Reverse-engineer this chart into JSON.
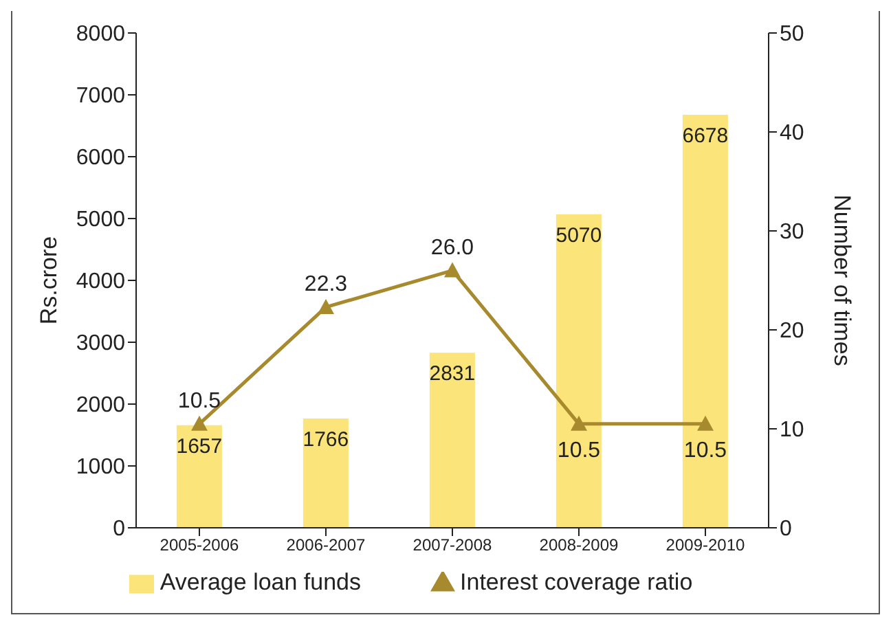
{
  "chart_data": {
    "type": "bar",
    "categories": [
      "2005-2006",
      "2006-2007",
      "2007-2008",
      "2008-2009",
      "2009-2010"
    ],
    "ylabel": "Rs.crore",
    "y2label": "Number of times",
    "ylim": [
      0,
      8000
    ],
    "yticks": [
      0,
      1000,
      2000,
      3000,
      4000,
      5000,
      6000,
      7000,
      8000
    ],
    "y2lim": [
      0,
      50
    ],
    "y2ticks": [
      0,
      10,
      20,
      30,
      40,
      50
    ],
    "legend": "bottom",
    "grid": false,
    "series": [
      {
        "name": "Average loan funds",
        "color": "#fbe47a",
        "values": [
          1657,
          1766,
          2831,
          5070,
          6678
        ],
        "value_labels": [
          "1657",
          "1766",
          "2831",
          "5070",
          "6678"
        ]
      },
      {
        "name": "Interest coverage ratio",
        "type": "line",
        "axis": "y2",
        "color": "#a88a2e",
        "marker": "triangle",
        "values": [
          10.5,
          22.3,
          26.0,
          10.5,
          10.5
        ],
        "value_labels": [
          "10.5",
          "22.3",
          "26.0",
          "10.5",
          "10.5"
        ]
      }
    ]
  }
}
